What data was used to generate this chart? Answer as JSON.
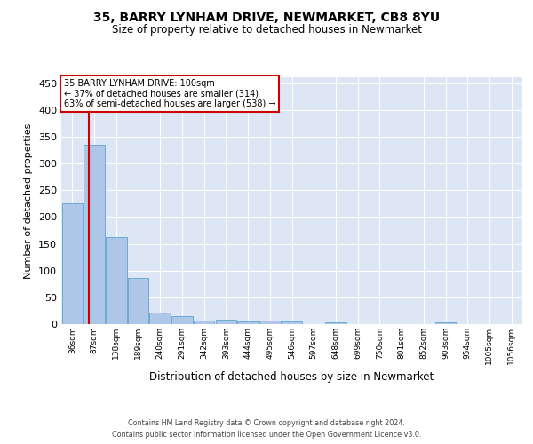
{
  "title": "35, BARRY LYNHAM DRIVE, NEWMARKET, CB8 8YU",
  "subtitle": "Size of property relative to detached houses in Newmarket",
  "xlabel": "Distribution of detached houses by size in Newmarket",
  "ylabel": "Number of detached properties",
  "bin_labels": [
    "36sqm",
    "87sqm",
    "138sqm",
    "189sqm",
    "240sqm",
    "291sqm",
    "342sqm",
    "393sqm",
    "444sqm",
    "495sqm",
    "546sqm",
    "597sqm",
    "648sqm",
    "699sqm",
    "750sqm",
    "801sqm",
    "852sqm",
    "903sqm",
    "954sqm",
    "1005sqm",
    "1056sqm"
  ],
  "bar_heights": [
    225,
    335,
    163,
    87,
    21,
    15,
    6,
    8,
    5,
    6,
    5,
    0,
    4,
    0,
    0,
    0,
    0,
    3,
    0,
    0,
    0
  ],
  "bar_color": "#aec6e8",
  "bar_edge_color": "#6aaad4",
  "red_line_x": 0.755,
  "annotation_line1": "35 BARRY LYNHAM DRIVE: 100sqm",
  "annotation_line2": "← 37% of detached houses are smaller (314)",
  "annotation_line3": "63% of semi-detached houses are larger (538) →",
  "annotation_box_facecolor": "#ffffff",
  "annotation_box_edgecolor": "#cc0000",
  "red_line_color": "#cc0000",
  "ylim": [
    0,
    460
  ],
  "yticks": [
    0,
    50,
    100,
    150,
    200,
    250,
    300,
    350,
    400,
    450
  ],
  "plot_bg_color": "#dce6f5",
  "grid_color": "#ffffff",
  "footer_line1": "Contains HM Land Registry data © Crown copyright and database right 2024.",
  "footer_line2": "Contains public sector information licensed under the Open Government Licence v3.0."
}
